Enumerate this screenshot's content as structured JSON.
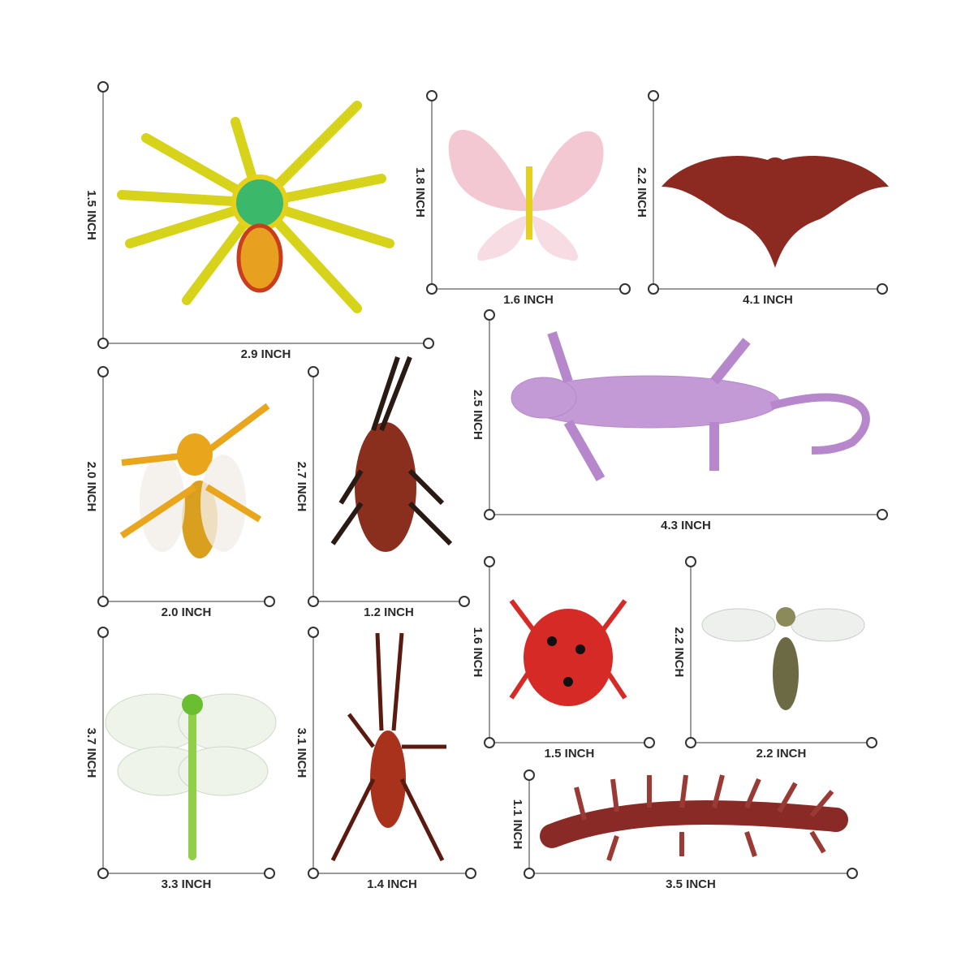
{
  "items": [
    {
      "height": "1.5 INCH",
      "width": "2.9 INCH"
    },
    {
      "height": "1.8 INCH",
      "width": "1.6 INCH"
    },
    {
      "height": "2.2 INCH",
      "width": "4.1 INCH"
    },
    {
      "height": "2.5 INCH",
      "width": "4.3 INCH"
    },
    {
      "height": "2.0 INCH",
      "width": "2.0 INCH"
    },
    {
      "height": "2.7 INCH",
      "width": "1.2 INCH"
    },
    {
      "height": "1.6 INCH",
      "width": "1.5 INCH"
    },
    {
      "height": "2.2 INCH",
      "width": "2.2 INCH"
    },
    {
      "height": "3.7 INCH",
      "width": "3.3 INCH"
    },
    {
      "height": "3.1 INCH",
      "width": "1.4 INCH"
    },
    {
      "height": "1.1 INCH",
      "width": "3.5 INCH"
    }
  ]
}
